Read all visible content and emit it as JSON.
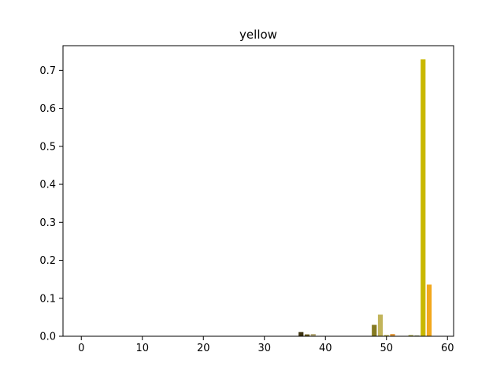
{
  "chart_data": {
    "type": "bar",
    "title": "yellow",
    "xlabel": "",
    "ylabel": "",
    "xlim": [
      -3,
      61
    ],
    "ylim": [
      0,
      0.765
    ],
    "x_ticks": [
      0,
      10,
      20,
      30,
      40,
      50,
      60
    ],
    "y_ticks": [
      0.0,
      0.1,
      0.2,
      0.3,
      0.4,
      0.5,
      0.6,
      0.7
    ],
    "y_tick_labels": [
      "0.0",
      "0.1",
      "0.2",
      "0.3",
      "0.4",
      "0.5",
      "0.6",
      "0.7"
    ],
    "grid": false,
    "bar_width": 0.8,
    "bars": [
      {
        "x": 36,
        "value": 0.011,
        "color": "#3d3310"
      },
      {
        "x": 37,
        "value": 0.005,
        "color": "#6b5d1e"
      },
      {
        "x": 38,
        "value": 0.006,
        "color": "#b5aa7a"
      },
      {
        "x": 48,
        "value": 0.03,
        "color": "#857a22"
      },
      {
        "x": 49,
        "value": 0.057,
        "color": "#c2b45a"
      },
      {
        "x": 50,
        "value": 0.003,
        "color": "#b5a836"
      },
      {
        "x": 51,
        "value": 0.006,
        "color": "#e39a3c"
      },
      {
        "x": 54,
        "value": 0.003,
        "color": "#9a9a2e"
      },
      {
        "x": 55,
        "value": 0.002,
        "color": "#7a8a4a"
      },
      {
        "x": 56,
        "value": 0.729,
        "color": "#c9b800"
      },
      {
        "x": 57,
        "value": 0.136,
        "color": "#f2a81d"
      }
    ]
  }
}
